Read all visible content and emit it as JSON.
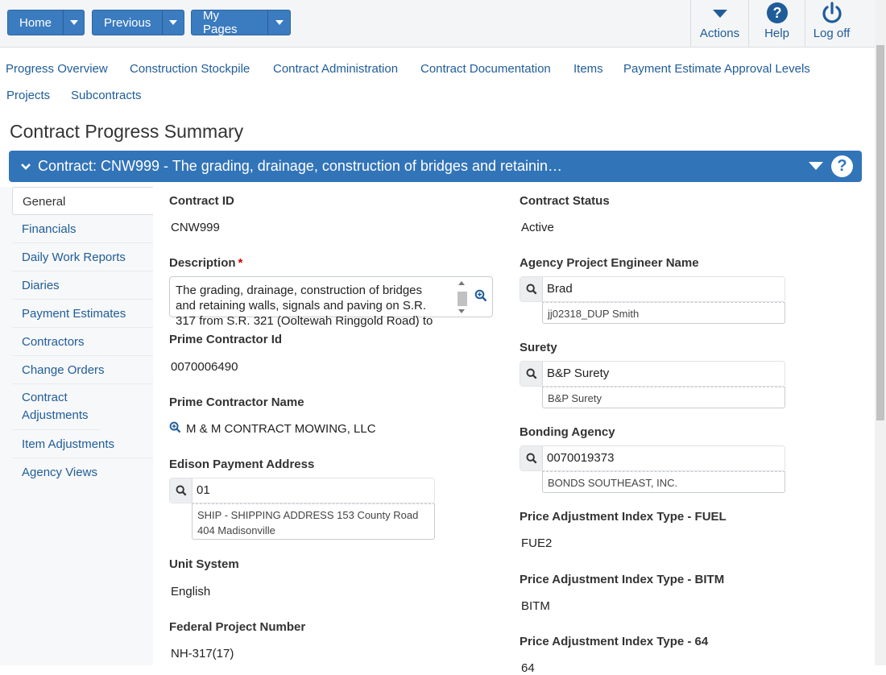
{
  "toolbar": {
    "home": "Home",
    "previous": "Previous",
    "my_pages": "My Pages",
    "actions": "Actions",
    "help": "Help",
    "logoff": "Log off"
  },
  "links": [
    "Progress Overview",
    "Construction Stockpile",
    "Contract Administration",
    "Contract Documentation",
    "Items",
    "Payment Estimate Approval Levels",
    "Projects",
    "Subcontracts"
  ],
  "page_title": "Contract Progress Summary",
  "banner": {
    "title": "Contract: CNW999 - The grading, drainage, construction of bridges and retainin…"
  },
  "sidenav": {
    "items": [
      "General",
      "Financials",
      "Daily Work Reports",
      "Diaries",
      "Payment Estimates",
      "Contractors",
      "Change Orders",
      "Contract Adjustments",
      "Item Adjustments",
      "Agency Views"
    ],
    "active_index": 0
  },
  "left": {
    "contract_id_label": "Contract ID",
    "contract_id": "CNW999",
    "description_label": "Description",
    "description": "The grading, drainage, construction of bridges and retaining walls, signals and paving on S.R. 317 from S.R. 321 (Ooltewah Ringgold Road) to",
    "prime_id_label": "Prime Contractor Id",
    "prime_id": "0070006490",
    "prime_name_label": "Prime Contractor Name",
    "prime_name": "M & M CONTRACT MOWING, LLC",
    "edison_label": "Edison Payment Address",
    "edison_value": "01",
    "edison_sub": "SHIP - SHIPPING ADDRESS 153 County Road 404 Madisonville",
    "unit_label": "Unit System",
    "unit_value": "English",
    "federal_label": "Federal Project Number",
    "federal_value": "NH-317(17)"
  },
  "right": {
    "status_label": "Contract Status",
    "status_value": "Active",
    "engineer_label": "Agency Project Engineer Name",
    "engineer_value": "Brad",
    "engineer_sub": "jj02318_DUP Smith",
    "surety_label": "Surety",
    "surety_value": "B&P Surety",
    "surety_sub": "B&P Surety",
    "bonding_label": "Bonding Agency",
    "bonding_value": "0070019373",
    "bonding_sub": "BONDS SOUTHEAST, INC.",
    "fuel_label": "Price Adjustment Index Type - FUEL",
    "fuel_value": "FUE2",
    "bitm_label": "Price Adjustment Index Type - BITM",
    "bitm_value": "BITM",
    "x64_label": "Price Adjustment Index Type - 64",
    "x64_value": "64"
  }
}
